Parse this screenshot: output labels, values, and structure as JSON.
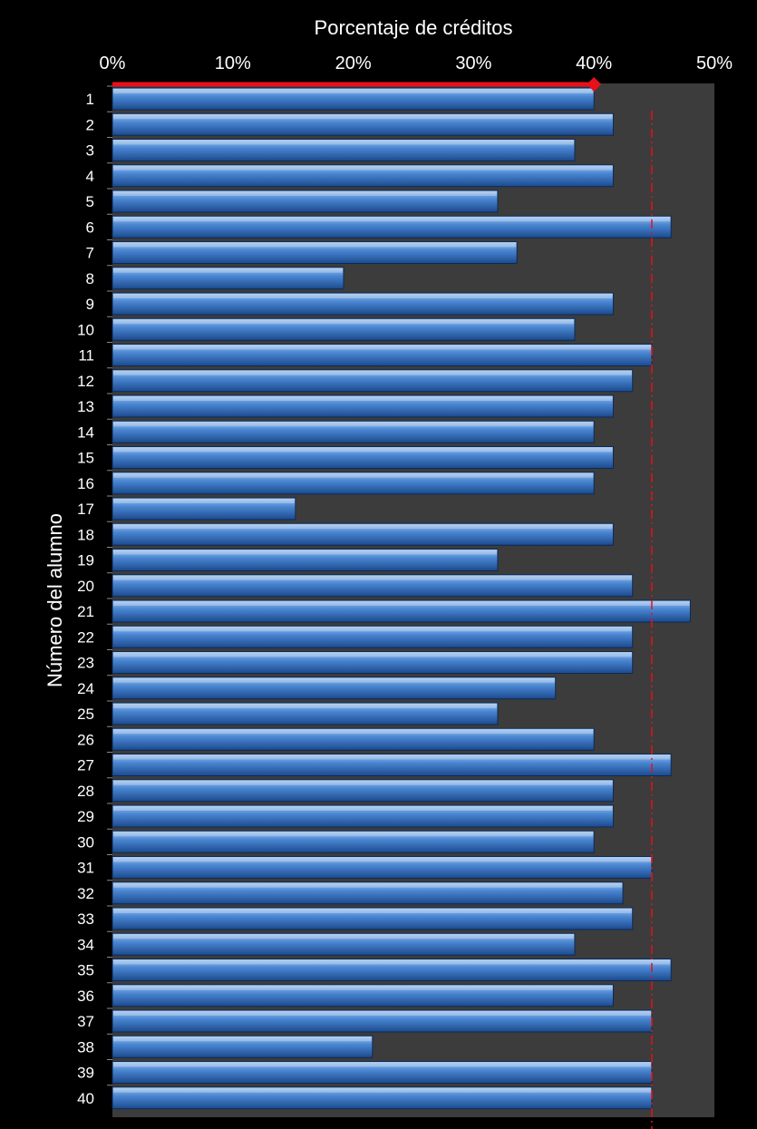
{
  "chart_data": {
    "type": "bar",
    "orientation": "horizontal",
    "title": "Porcentaje de créditos",
    "xlabel": "Porcentaje de créditos",
    "ylabel": "Número del alumno",
    "xlim": [
      0,
      50
    ],
    "x_ticks": [
      "0%",
      "10%",
      "20%",
      "30%",
      "40%",
      "50%"
    ],
    "x_axis_position": "top",
    "categories": [
      "1",
      "2",
      "3",
      "4",
      "5",
      "6",
      "7",
      "8",
      "9",
      "10",
      "11",
      "12",
      "13",
      "14",
      "15",
      "16",
      "17",
      "18",
      "19",
      "20",
      "21",
      "22",
      "23",
      "24",
      "25",
      "26",
      "27",
      "28",
      "29",
      "30",
      "31",
      "32",
      "33",
      "34",
      "35",
      "36",
      "37",
      "38",
      "39",
      "40"
    ],
    "series": [
      {
        "values": [
          40,
          41.6,
          38.4,
          41.6,
          32,
          46.4,
          33.6,
          19.2,
          41.6,
          38.4,
          44.8,
          43.2,
          41.6,
          40,
          41.6,
          40,
          15.2,
          41.6,
          32,
          43.2,
          48,
          43.2,
          43.2,
          36.8,
          32,
          40,
          46.4,
          41.6,
          41.6,
          40,
          44.8,
          42.4,
          43.2,
          38.4,
          46.4,
          41.6,
          44.8,
          21.6,
          44.8,
          44.8
        ]
      }
    ],
    "reference_line": {
      "value": 44.8,
      "style": "dash-dot",
      "color": "#e8101a"
    },
    "marker_line": {
      "value": 40,
      "color": "#e8101a",
      "marker": "diamond"
    },
    "grid": false,
    "colors": {
      "background": "#000000",
      "plot_area": "#3c3c3c",
      "bar_top": "#9fc4ef",
      "bar_mid": "#4a86d2",
      "bar_bottom": "#1b4a8e",
      "text": "#ffffff"
    }
  }
}
